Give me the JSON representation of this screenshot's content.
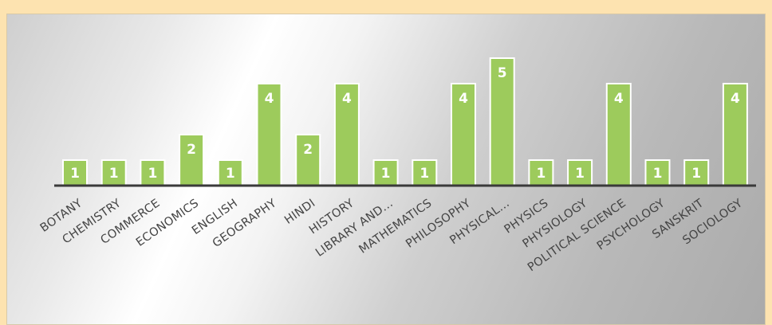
{
  "chart_data": {
    "type": "bar",
    "categories": [
      "BOTANY",
      "CHEMISTRY",
      "COMMERCE",
      "ECONOMICS",
      "ENGLISH",
      "GEOGRAPHY",
      "HINDI",
      "HISTORY",
      "LIBRARY AND...",
      "MATHEMATICS",
      "PHILOSOPHY",
      "PHYSICAL...",
      "PHYSICS",
      "PHYSIOLOGY",
      "POLITICAL SCIENCE",
      "PSYCHOLOGY",
      "SANSKRIT",
      "SOCIOLOGY"
    ],
    "values": [
      1,
      1,
      1,
      2,
      1,
      4,
      2,
      4,
      1,
      1,
      4,
      5,
      1,
      1,
      4,
      1,
      1,
      4
    ],
    "title": "",
    "xlabel": "",
    "ylabel": "",
    "ylim": [
      0,
      5
    ],
    "grid": false,
    "bar_color": "#9dcb5c",
    "bar_border": "#ffffff",
    "axis_color": "#3a3a3a"
  }
}
